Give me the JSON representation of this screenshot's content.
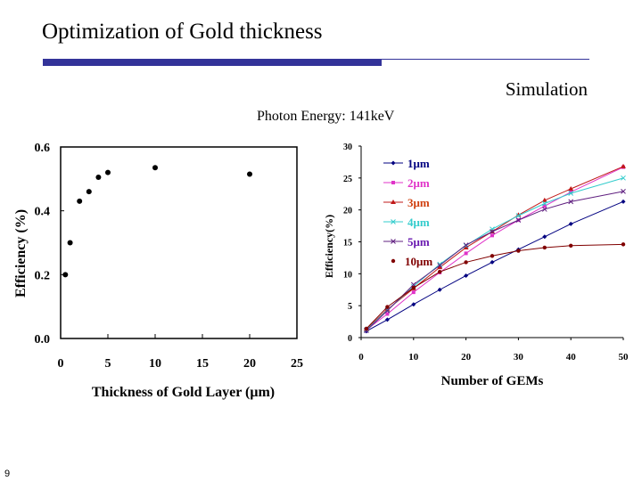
{
  "slide": {
    "title": "Optimization of Gold thickness",
    "subtitle": "Simulation",
    "caption": "Photon Energy: 141keV",
    "page_number": "9",
    "accent_color": "#333399"
  },
  "chart_data": [
    {
      "type": "scatter",
      "xlabel": "Thickness of Gold Layer (μm)",
      "ylabel": "Efficiency (%)",
      "xlim": [
        0,
        25
      ],
      "ylim": [
        0,
        0.6
      ],
      "xticks": [
        "0",
        "5",
        "10",
        "15",
        "20",
        "25"
      ],
      "yticks": [
        "0.0",
        "0.2",
        "0.4",
        "0.6"
      ],
      "grid": false,
      "points": [
        [
          0.5,
          0.2
        ],
        [
          1,
          0.3
        ],
        [
          2,
          0.43
        ],
        [
          3,
          0.46
        ],
        [
          4,
          0.505
        ],
        [
          5,
          0.52
        ],
        [
          10,
          0.535
        ],
        [
          20,
          0.515
        ]
      ],
      "color": "#000000"
    },
    {
      "type": "line",
      "xlabel": "Number of GEMs",
      "ylabel": "Efficiency(%)",
      "xlim": [
        0,
        50
      ],
      "ylim": [
        0,
        30
      ],
      "xticks": [
        "0",
        "10",
        "20",
        "30",
        "40",
        "50"
      ],
      "yticks": [
        "0",
        "5",
        "10",
        "15",
        "20",
        "25",
        "30"
      ],
      "grid": false,
      "legend_position": "top-left",
      "x": [
        1,
        5,
        10,
        15,
        20,
        25,
        30,
        35,
        40,
        50
      ],
      "series": [
        {
          "name": "1μm",
          "color": "#000080",
          "text_color": "#000080",
          "marker": "diamond",
          "values": [
            1,
            2.8,
            5.2,
            7.5,
            9.7,
            11.8,
            13.8,
            15.8,
            17.8,
            21.3
          ]
        },
        {
          "name": "2μm",
          "color": "#e033c8",
          "text_color": "#e033c8",
          "marker": "square",
          "values": [
            1.2,
            3.7,
            7.1,
            10.2,
            13.2,
            16,
            18.4,
            20.6,
            22.8,
            26.7
          ]
        },
        {
          "name": "3μm",
          "color": "#c01818",
          "text_color": "#d04010",
          "marker": "triangle",
          "values": [
            1.3,
            4.4,
            7.7,
            11,
            14.1,
            16.6,
            19.2,
            21.5,
            23.3,
            26.8
          ]
        },
        {
          "name": "4μm",
          "color": "#33cccc",
          "text_color": "#33cccc",
          "marker": "x",
          "values": [
            1.2,
            4.3,
            8,
            11.5,
            14.4,
            17,
            19.1,
            21,
            22.6,
            25
          ]
        },
        {
          "name": "5μm",
          "color": "#602080",
          "text_color": "#6a1ab0",
          "marker": "x",
          "values": [
            1.1,
            4.2,
            8.3,
            11.3,
            14.5,
            16.6,
            18.4,
            20.1,
            21.3,
            22.9
          ]
        },
        {
          "name": "10μm",
          "color": "#800000",
          "text_color": "#800000",
          "marker": "circle",
          "values": [
            1.4,
            4.8,
            7.8,
            10.3,
            11.8,
            12.8,
            13.6,
            14.1,
            14.4,
            14.6
          ]
        }
      ]
    }
  ]
}
